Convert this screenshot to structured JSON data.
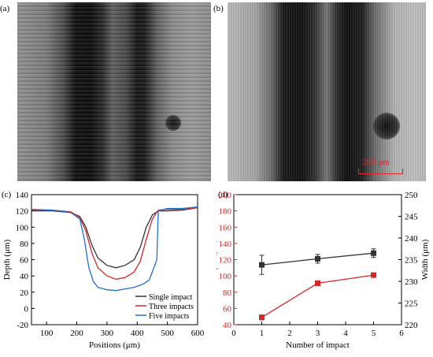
{
  "panels": {
    "a": "(a)",
    "b": "(b)",
    "c": "(c)",
    "d": "(d)"
  },
  "scale_bar": "200 μm",
  "colors": {
    "black": "#333333",
    "red": "#d62728",
    "blue": "#1f6fd1"
  },
  "chart_data": [
    {
      "type": "line",
      "xlabel": "Positions (μm)",
      "ylabel": "Depth (μm)",
      "xlim": [
        50,
        600
      ],
      "ylim": [
        -20,
        140
      ],
      "xticks": [
        100,
        200,
        300,
        400,
        500,
        600
      ],
      "yticks": [
        -20,
        0,
        20,
        40,
        60,
        80,
        100,
        120,
        140
      ],
      "legend_position": "bottom-right",
      "series": [
        {
          "name": "Single impact",
          "color": "#333333",
          "x": [
            50,
            120,
            180,
            210,
            230,
            250,
            270,
            300,
            330,
            360,
            390,
            410,
            430,
            450,
            470,
            500,
            550,
            600
          ],
          "y": [
            120,
            120,
            118,
            113,
            100,
            78,
            62,
            53,
            50,
            53,
            60,
            75,
            100,
            115,
            120,
            120,
            121,
            124
          ]
        },
        {
          "name": "Three impacts",
          "color": "#d62728",
          "x": [
            50,
            120,
            180,
            210,
            230,
            250,
            270,
            300,
            330,
            360,
            390,
            410,
            430,
            450,
            470,
            500,
            550,
            600
          ],
          "y": [
            121,
            121,
            119,
            112,
            95,
            68,
            50,
            40,
            36,
            38,
            45,
            58,
            85,
            110,
            121,
            122,
            122,
            124
          ]
        },
        {
          "name": "Five impacts",
          "color": "#1f6fd1",
          "x": [
            50,
            120,
            180,
            210,
            225,
            240,
            255,
            270,
            300,
            330,
            360,
            390,
            420,
            440,
            455,
            465,
            470,
            500,
            550,
            600
          ],
          "y": [
            122,
            121,
            118,
            110,
            85,
            50,
            33,
            26,
            23,
            22,
            24,
            26,
            30,
            35,
            50,
            60,
            120,
            123,
            123,
            125
          ]
        }
      ]
    },
    {
      "type": "scatter",
      "xlabel": "Number of impact",
      "ylabel": "Depth (μm)",
      "y2label": "Width (μm)",
      "xlim": [
        0,
        6
      ],
      "ylim": [
        40,
        200
      ],
      "y2lim": [
        220,
        250
      ],
      "xticks": [
        0,
        1,
        2,
        3,
        4,
        5,
        6
      ],
      "yticks": [
        40,
        60,
        80,
        100,
        120,
        140,
        160,
        180,
        200
      ],
      "y2ticks": [
        220,
        225,
        230,
        235,
        240,
        245,
        250
      ],
      "series": [
        {
          "axis": "left",
          "color": "#d62728",
          "x": [
            1,
            3,
            5
          ],
          "y": [
            49,
            91,
            101
          ],
          "err": [
            3,
            3,
            2
          ]
        },
        {
          "axis": "right",
          "color": "#333333",
          "x": [
            1,
            3,
            5
          ],
          "y": [
            233.8,
            235.2,
            236.5
          ],
          "err": [
            2.2,
            1.0,
            1.0
          ]
        }
      ]
    }
  ]
}
